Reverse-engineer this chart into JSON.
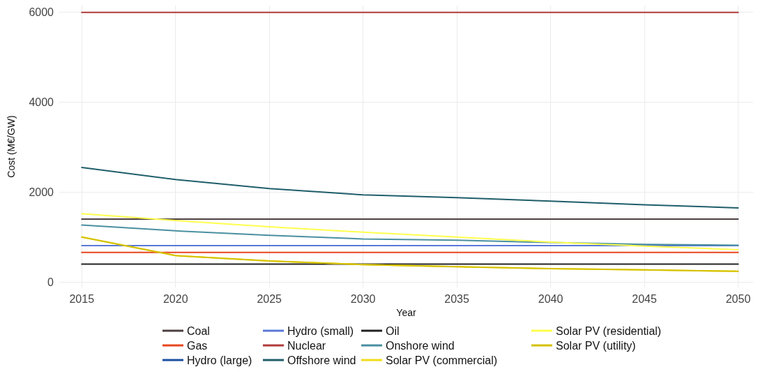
{
  "chart_data": {
    "type": "line",
    "xlabel": "Year",
    "ylabel": "Cost (M€/GW)",
    "x": [
      2015,
      2020,
      2025,
      2030,
      2035,
      2040,
      2045,
      2050
    ],
    "xlim": [
      2013.8,
      2050.8
    ],
    "xticks": [
      2015,
      2020,
      2025,
      2030,
      2035,
      2040,
      2045,
      2050
    ],
    "ylim": [
      -120,
      6150
    ],
    "yticks": [
      0,
      2000,
      4000,
      6000
    ],
    "grid": true,
    "legend": "bottom",
    "marker": "none",
    "line_style": "solid",
    "series": [
      {
        "name": "Coal",
        "color": "#4d4040",
        "values": [
          1400,
          1400,
          1400,
          1400,
          1400,
          1400,
          1400,
          1400
        ]
      },
      {
        "name": "Gas",
        "color": "#e8461e",
        "values": [
          660,
          660,
          660,
          660,
          660,
          660,
          660,
          660
        ]
      },
      {
        "name": "Hydro (large)",
        "color": "#1a4fa0",
        "values": [
          null,
          null,
          null,
          null,
          null,
          null,
          null,
          null
        ]
      },
      {
        "name": "Hydro (small)",
        "color": "#5a78d8",
        "values": [
          810,
          810,
          810,
          810,
          810,
          810,
          810,
          810
        ]
      },
      {
        "name": "Nuclear",
        "color": "#b03a3a",
        "values": [
          6000,
          6000,
          6000,
          6000,
          6000,
          6000,
          6000,
          6000
        ]
      },
      {
        "name": "Offshore wind",
        "color": "#1f5e6a",
        "values": [
          2550,
          2280,
          2080,
          1940,
          1880,
          1800,
          1720,
          1650
        ]
      },
      {
        "name": "Oil",
        "color": "#222222",
        "values": [
          400,
          400,
          400,
          400,
          400,
          400,
          400,
          400
        ]
      },
      {
        "name": "Onshore wind",
        "color": "#4a8fa0",
        "values": [
          1270,
          1140,
          1040,
          960,
          930,
          880,
          840,
          820
        ]
      },
      {
        "name": "Solar PV (commercial)",
        "color": "#f0dc1a",
        "values": [
          1000,
          590,
          470,
          390,
          340,
          300,
          270,
          240
        ]
      },
      {
        "name": "Solar PV (residential)",
        "color": "#ffff4d",
        "values": [
          1520,
          1370,
          1230,
          1110,
          1000,
          890,
          800,
          720
        ]
      },
      {
        "name": "Solar PV (utility)",
        "color": "#d4c000",
        "values": [
          1000,
          590,
          470,
          390,
          340,
          300,
          270,
          240
        ]
      }
    ]
  }
}
